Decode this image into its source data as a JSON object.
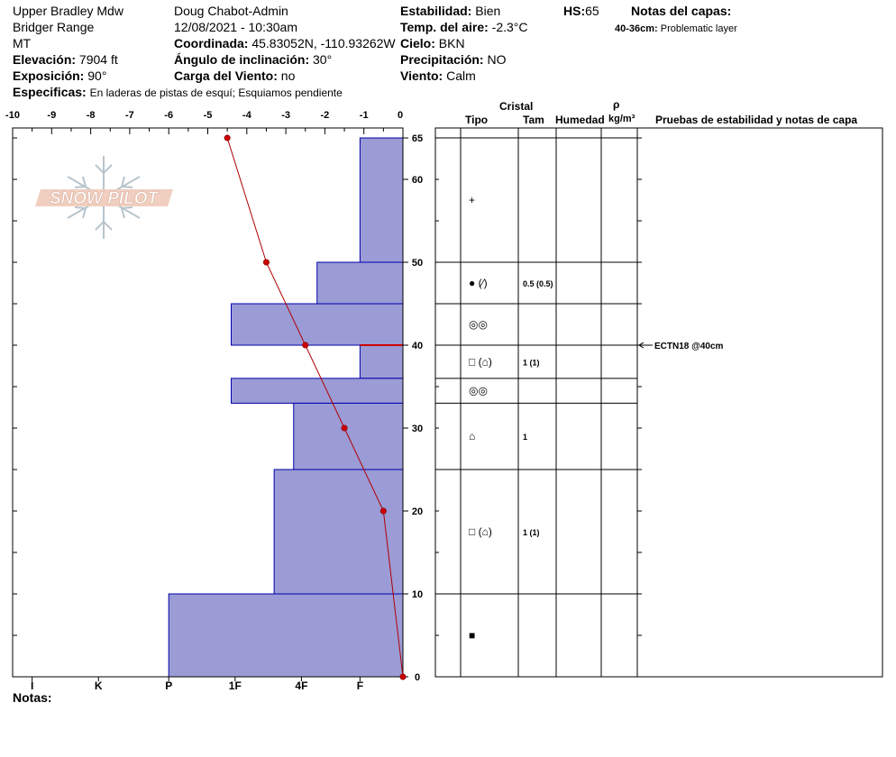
{
  "header": {
    "location": "Upper Bradley Mdw",
    "range": "Bridger Range",
    "state": "MT",
    "elevation_label": "Elevación:",
    "elevation_value": "7904 ft",
    "aspect_label": "Exposición:",
    "aspect_value": "90°",
    "specifics_label": "Especificas:",
    "specifics_value": "En laderas de pistas de esquí; Esquiamos pendiente",
    "observer": "Doug Chabot-Admin",
    "datetime": "12/08/2021 - 10:30am",
    "coord_label": "Coordinada:",
    "coord_value": "45.83052N, -110.93262W",
    "slope_label": "Ángulo de inclinación:",
    "slope_value": "30°",
    "wind_load_label": "Carga del Viento:",
    "wind_load_value": "no",
    "stability_label": "Estabilidad:",
    "stability_value": "Bien",
    "air_temp_label": "Temp. del aire:",
    "air_temp_value": "-2.3°C",
    "sky_label": "Cielo:",
    "sky_value": "BKN",
    "precip_label": "Precipitación:",
    "precip_value": "NO",
    "wind_label": "Viento:",
    "wind_value": "Calm",
    "hs_label": "HS:",
    "hs_value": "65",
    "layer_notes_label": "Notas del capas:",
    "layer_note_range": "40-36cm:",
    "layer_note_text": "Problematic layer"
  },
  "logo_text": "SNOW PILOT",
  "notes_label": "Notas:",
  "table_headers": {
    "crystal": "Cristal",
    "type": "Tipo",
    "size": "Tam",
    "moisture": "Humedad",
    "rho": "ρ",
    "density_unit": "kg/m³",
    "tests": "Pruebas de estabilidad y notas de capa"
  },
  "stability_test": {
    "label": "ECTN18 @40cm",
    "height": 40
  },
  "layers": [
    {
      "top": 65,
      "bottom": 50,
      "crystal": "+",
      "size": ""
    },
    {
      "top": 50,
      "bottom": 45,
      "crystal": "● (⁄)",
      "size": "0.5 (0.5)"
    },
    {
      "top": 45,
      "bottom": 40,
      "crystal": "◎◎",
      "size": ""
    },
    {
      "top": 40,
      "bottom": 36,
      "crystal": "□ (⌂)",
      "size": "1 (1)"
    },
    {
      "top": 36,
      "bottom": 33,
      "crystal": "◎◎",
      "size": ""
    },
    {
      "top": 33,
      "bottom": 25,
      "crystal": "⌂",
      "size": "1"
    },
    {
      "top": 25,
      "bottom": 10,
      "crystal": "□ (⌂)",
      "size": "1 (1)"
    },
    {
      "top": 10,
      "bottom": 0,
      "crystal": "■",
      "size": ""
    }
  ],
  "chart_data": {
    "type": "bar",
    "x_ticks": [
      "-10",
      "-9",
      "-8",
      "-7",
      "-6",
      "-5",
      "-4",
      "-3",
      "-2",
      "-1",
      "0"
    ],
    "x_range": [
      -10,
      0
    ],
    "y_ticks": [
      "0",
      "10",
      "20",
      "30",
      "40",
      "50",
      "60",
      "65"
    ],
    "y_range": [
      0,
      65
    ],
    "hardness_labels": [
      "I",
      "K",
      "P",
      "1F",
      "4F",
      "F"
    ],
    "hardness_positions": [
      -9.5,
      -7.8,
      -6,
      -4.3,
      -2.6,
      -1.1
    ],
    "hardness_bars": [
      {
        "top": 65,
        "bottom": 50,
        "temp_extent": -1.1
      },
      {
        "top": 50,
        "bottom": 45,
        "temp_extent": -2.2
      },
      {
        "top": 45,
        "bottom": 40,
        "temp_extent": -4.4
      },
      {
        "top": 40,
        "bottom": 36,
        "temp_extent": -1.1
      },
      {
        "top": 36,
        "bottom": 33,
        "temp_extent": -4.4
      },
      {
        "top": 33,
        "bottom": 25,
        "temp_extent": -2.8
      },
      {
        "top": 25,
        "bottom": 10,
        "temp_extent": -3.3
      },
      {
        "top": 10,
        "bottom": 0,
        "temp_extent": -6.0
      }
    ],
    "temperature_profile": [
      {
        "depth": 65,
        "temp": -4.5
      },
      {
        "depth": 50,
        "temp": -3.5
      },
      {
        "depth": 40,
        "temp": -2.5
      },
      {
        "depth": 30,
        "temp": -1.5
      },
      {
        "depth": 20,
        "temp": -0.5
      },
      {
        "depth": 0,
        "temp": 0
      }
    ],
    "colors": {
      "bar_fill": "#9b9bd6",
      "bar_stroke": "#0000aa",
      "temp_line": "#b00000",
      "marker": "#cc0000"
    }
  }
}
